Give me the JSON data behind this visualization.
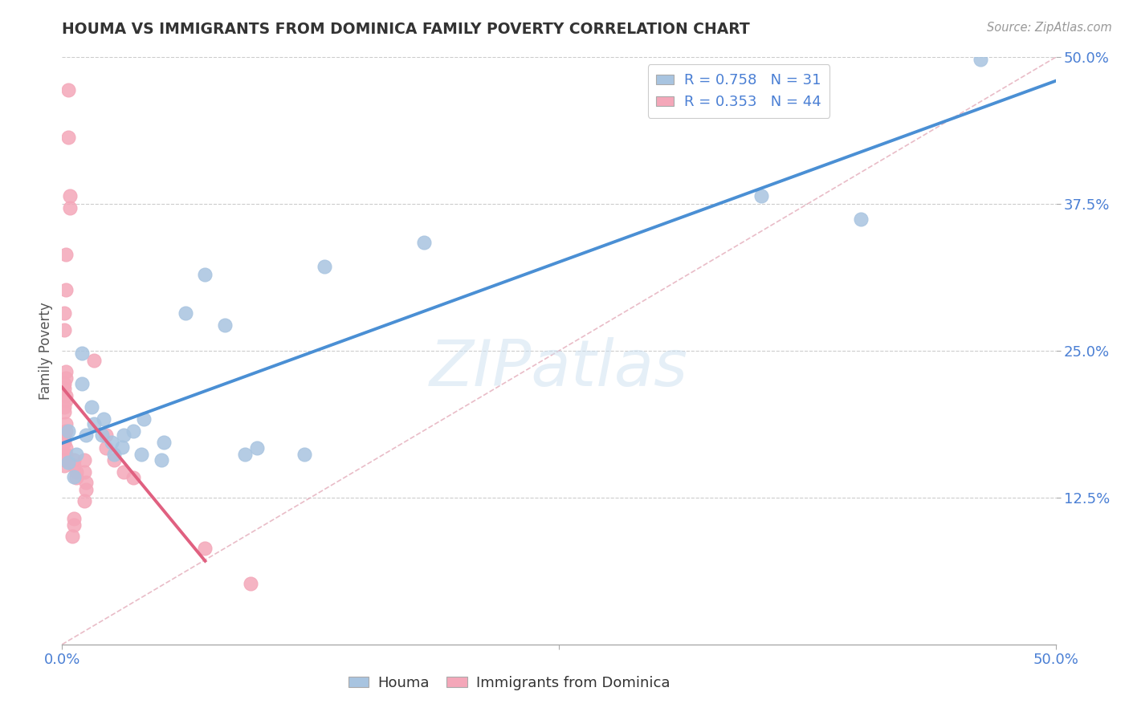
{
  "title": "HOUMA VS IMMIGRANTS FROM DOMINICA FAMILY POVERTY CORRELATION CHART",
  "source_text": "Source: ZipAtlas.com",
  "ylabel": "Family Poverty",
  "xlim": [
    0,
    0.5
  ],
  "ylim": [
    0,
    0.5
  ],
  "watermark": "ZIPatlas",
  "houma_R": 0.758,
  "houma_N": 31,
  "dominica_R": 0.353,
  "dominica_N": 44,
  "houma_color": "#a8c4e0",
  "dominica_color": "#f4a7b9",
  "houma_line_color": "#4a8fd4",
  "dominica_line_color": "#e06080",
  "diagonal_color": "#e0a0b0",
  "houma_scatter": [
    [
      0.003,
      0.155
    ],
    [
      0.003,
      0.182
    ],
    [
      0.006,
      0.143
    ],
    [
      0.007,
      0.162
    ],
    [
      0.01,
      0.222
    ],
    [
      0.01,
      0.248
    ],
    [
      0.012,
      0.178
    ],
    [
      0.015,
      0.202
    ],
    [
      0.016,
      0.188
    ],
    [
      0.02,
      0.178
    ],
    [
      0.021,
      0.192
    ],
    [
      0.025,
      0.172
    ],
    [
      0.026,
      0.162
    ],
    [
      0.03,
      0.168
    ],
    [
      0.031,
      0.178
    ],
    [
      0.036,
      0.182
    ],
    [
      0.04,
      0.162
    ],
    [
      0.041,
      0.192
    ],
    [
      0.05,
      0.157
    ],
    [
      0.051,
      0.172
    ],
    [
      0.062,
      0.282
    ],
    [
      0.072,
      0.315
    ],
    [
      0.082,
      0.272
    ],
    [
      0.092,
      0.162
    ],
    [
      0.098,
      0.167
    ],
    [
      0.122,
      0.162
    ],
    [
      0.132,
      0.322
    ],
    [
      0.182,
      0.342
    ],
    [
      0.352,
      0.382
    ],
    [
      0.402,
      0.362
    ],
    [
      0.462,
      0.498
    ]
  ],
  "dominica_scatter": [
    [
      0.003,
      0.472
    ],
    [
      0.003,
      0.432
    ],
    [
      0.004,
      0.382
    ],
    [
      0.004,
      0.372
    ],
    [
      0.002,
      0.332
    ],
    [
      0.002,
      0.302
    ],
    [
      0.001,
      0.282
    ],
    [
      0.001,
      0.268
    ],
    [
      0.002,
      0.232
    ],
    [
      0.002,
      0.227
    ],
    [
      0.001,
      0.222
    ],
    [
      0.001,
      0.218
    ],
    [
      0.002,
      0.212
    ],
    [
      0.002,
      0.208
    ],
    [
      0.001,
      0.202
    ],
    [
      0.001,
      0.198
    ],
    [
      0.002,
      0.188
    ],
    [
      0.002,
      0.182
    ],
    [
      0.001,
      0.178
    ],
    [
      0.001,
      0.172
    ],
    [
      0.002,
      0.167
    ],
    [
      0.002,
      0.162
    ],
    [
      0.001,
      0.157
    ],
    [
      0.001,
      0.152
    ],
    [
      0.006,
      0.157
    ],
    [
      0.006,
      0.152
    ],
    [
      0.007,
      0.147
    ],
    [
      0.007,
      0.142
    ],
    [
      0.006,
      0.107
    ],
    [
      0.006,
      0.102
    ],
    [
      0.005,
      0.092
    ],
    [
      0.011,
      0.157
    ],
    [
      0.011,
      0.147
    ],
    [
      0.012,
      0.138
    ],
    [
      0.012,
      0.132
    ],
    [
      0.011,
      0.122
    ],
    [
      0.016,
      0.242
    ],
    [
      0.022,
      0.178
    ],
    [
      0.022,
      0.167
    ],
    [
      0.026,
      0.157
    ],
    [
      0.031,
      0.147
    ],
    [
      0.036,
      0.142
    ],
    [
      0.072,
      0.082
    ],
    [
      0.095,
      0.052
    ]
  ],
  "houma_line": [
    [
      0.0,
      0.158
    ],
    [
      0.462,
      0.498
    ]
  ],
  "dominica_line": [
    [
      0.0,
      0.192
    ],
    [
      0.072,
      0.082
    ]
  ],
  "diagonal_line": [
    [
      0.0,
      0.0
    ],
    [
      0.5,
      0.5
    ]
  ]
}
